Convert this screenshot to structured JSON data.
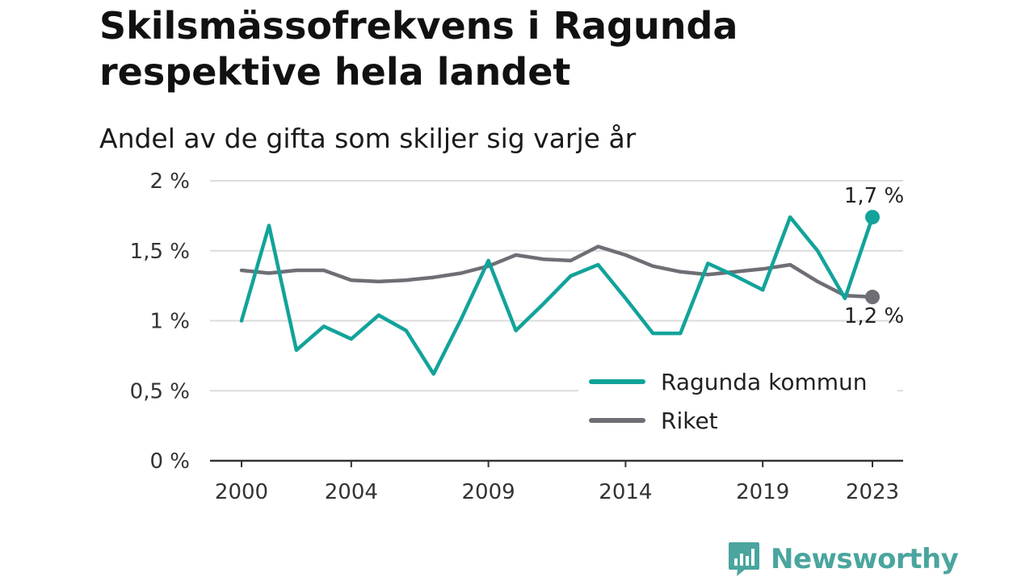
{
  "header": {
    "title": "Skilsmässofrekvens i Ragunda respektive hela landet",
    "subtitle": "Andel av de gifta som skiljer sig varje år"
  },
  "brand": {
    "name": "Newsworthy",
    "color": "#4aa59e"
  },
  "chart_data": {
    "type": "line",
    "title": "Skilsmässofrekvens i Ragunda respektive hela landet",
    "subtitle": "Andel av de gifta som skiljer sig varje år",
    "xlabel": "",
    "ylabel": "",
    "x": [
      2000,
      2001,
      2002,
      2003,
      2004,
      2005,
      2006,
      2007,
      2008,
      2009,
      2010,
      2011,
      2012,
      2013,
      2014,
      2015,
      2016,
      2017,
      2018,
      2019,
      2020,
      2021,
      2022,
      2023
    ],
    "x_ticks": [
      2000,
      2004,
      2009,
      2014,
      2019,
      2023
    ],
    "x_tick_labels": [
      "2000",
      "2004",
      "2009",
      "2014",
      "2019",
      "2023"
    ],
    "ylim": [
      0,
      2
    ],
    "y_ticks": [
      0,
      0.5,
      1,
      1.5,
      2
    ],
    "y_tick_labels": [
      "0 %",
      "0,5 %",
      "1 %",
      "1,5 %",
      "2 %"
    ],
    "grid": true,
    "legend_position": "bottom-right",
    "series": [
      {
        "name": "Ragunda kommun",
        "color": "#12a39a",
        "values": [
          1.0,
          1.68,
          0.79,
          0.96,
          0.87,
          1.04,
          0.93,
          0.62,
          1.01,
          1.43,
          0.93,
          1.12,
          1.32,
          1.4,
          1.16,
          0.91,
          0.91,
          1.41,
          1.32,
          1.22,
          1.74,
          1.5,
          1.16,
          1.74
        ],
        "end_label": "1,7 %"
      },
      {
        "name": "Riket",
        "color": "#6e6e75",
        "values": [
          1.36,
          1.34,
          1.36,
          1.36,
          1.29,
          1.28,
          1.29,
          1.31,
          1.34,
          1.39,
          1.47,
          1.44,
          1.43,
          1.53,
          1.47,
          1.39,
          1.35,
          1.33,
          1.35,
          1.37,
          1.4,
          1.28,
          1.18,
          1.17
        ],
        "end_label": "1,2 %"
      }
    ]
  }
}
